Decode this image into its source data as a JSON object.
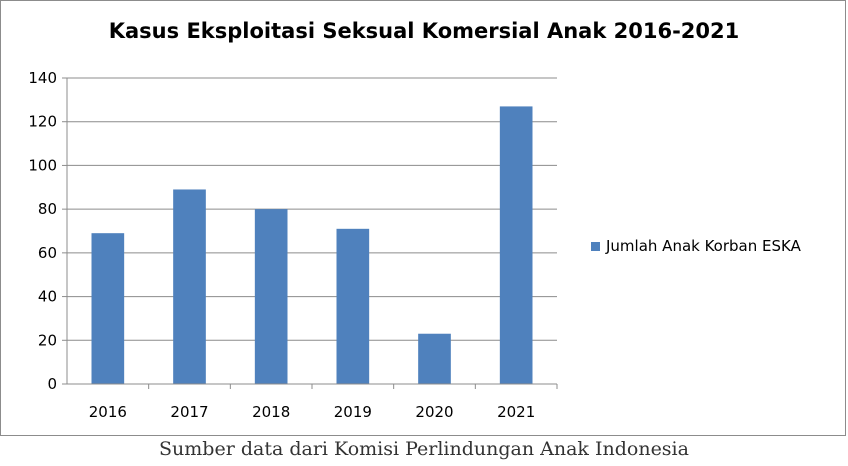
{
  "chart_data": {
    "type": "bar",
    "title": "Kasus Eksploitasi Seksual Komersial Anak 2016-2021",
    "categories": [
      "2016",
      "2017",
      "2018",
      "2019",
      "2020",
      "2021"
    ],
    "series": [
      {
        "name": "Jumlah Anak Korban ESKA",
        "values": [
          69,
          89,
          80,
          71,
          23,
          127
        ],
        "color": "#4f81bd"
      }
    ],
    "ylim": [
      0,
      140
    ],
    "yticks": [
      "0",
      "20",
      "40",
      "60",
      "80",
      "100",
      "120",
      "140"
    ],
    "grid": true,
    "legend_position": "right"
  },
  "caption": "Sumber data dari Komisi Perlindungan Anak Indonesia"
}
